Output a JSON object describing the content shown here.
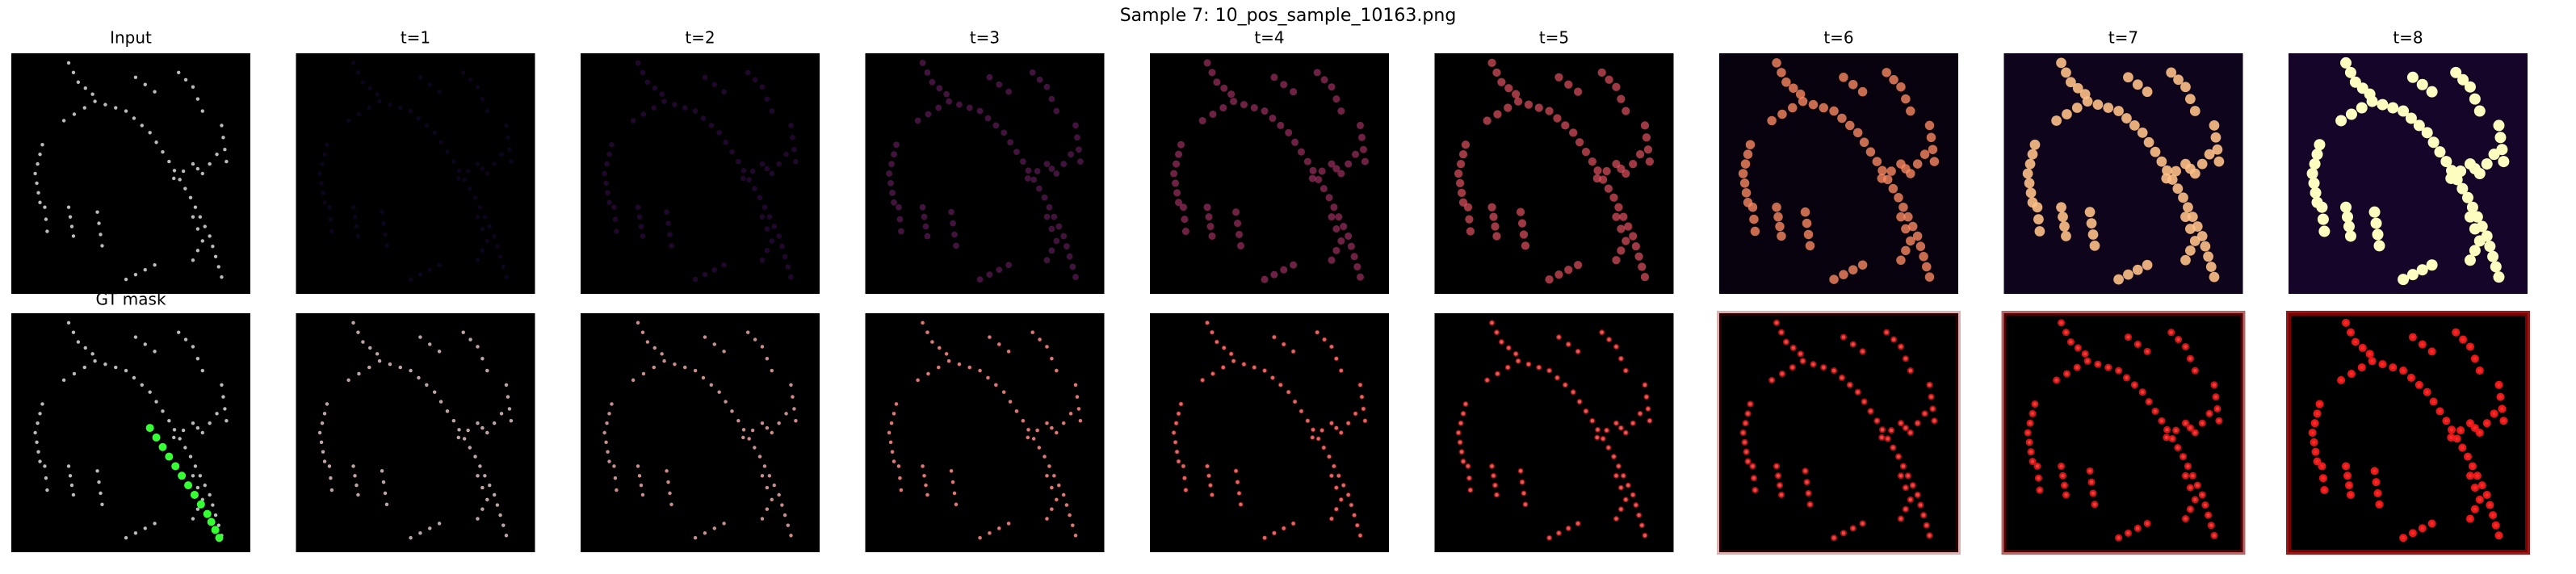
{
  "figure": {
    "title": "Sample 7: 10_pos_sample_10163.png",
    "top_row": {
      "labels": [
        "Input",
        "t=1",
        "t=2",
        "t=3",
        "t=4",
        "t=5",
        "t=6",
        "t=7",
        "t=8"
      ]
    },
    "bottom_row": {
      "label": "GT mask"
    }
  }
}
